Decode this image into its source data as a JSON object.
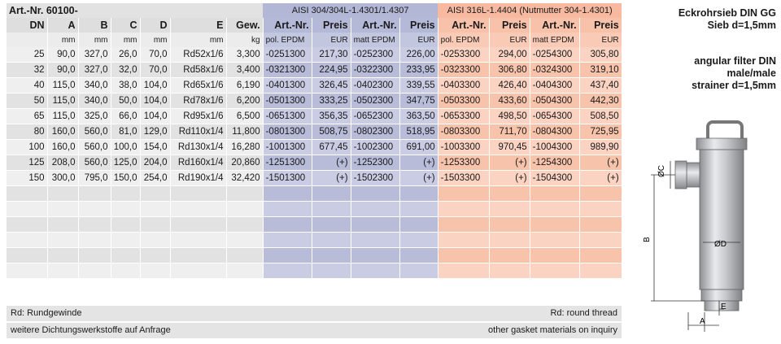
{
  "header": {
    "article_no": "Art.-Nr. 60100-",
    "group_a": "AISI 304/304L-1.4301/1.4307",
    "group_b": "AISI 316L-1.4404 (Nutmutter 304-1.4301)"
  },
  "columns": [
    "DN",
    "A",
    "B",
    "C",
    "D",
    "E",
    "Gew.",
    "Art.-Nr.",
    "Preis",
    "Art.-Nr.",
    "Preis",
    "Art.-Nr.",
    "Preis",
    "Art.-Nr.",
    "Preis"
  ],
  "units": [
    "",
    "mm",
    "mm",
    "mm",
    "mm",
    "mm",
    "kg",
    "pol. EPDM",
    "EUR",
    "matt EPDM",
    "EUR",
    "pol. EPDM",
    "EUR",
    "matt EPDM",
    "EUR"
  ],
  "rows": [
    [
      "25",
      "90,0",
      "327,0",
      "26,0",
      "70,0",
      "Rd52x1/6",
      "3,300",
      "-0251300",
      "217,30",
      "-0252300",
      "226,00",
      "-0253300",
      "294,00",
      "-0254300",
      "305,80"
    ],
    [
      "32",
      "90,0",
      "327,0",
      "32,0",
      "70,0",
      "Rd58x1/6",
      "3,400",
      "-0321300",
      "224,95",
      "-0322300",
      "233,95",
      "-0323300",
      "306,80",
      "-0324300",
      "319,10"
    ],
    [
      "40",
      "115,0",
      "340,0",
      "38,0",
      "104,0",
      "Rd65x1/6",
      "6,190",
      "-0401300",
      "326,45",
      "-0402300",
      "339,55",
      "-0403300",
      "426,40",
      "-0404300",
      "437,40"
    ],
    [
      "50",
      "115,0",
      "340,0",
      "50,0",
      "104,0",
      "Rd78x1/6",
      "6,200",
      "-0501300",
      "333,25",
      "-0502300",
      "347,75",
      "-0503300",
      "433,60",
      "-0504300",
      "442,30"
    ],
    [
      "65",
      "115,0",
      "325,0",
      "66,0",
      "104,0",
      "Rd95x1/6",
      "6,500",
      "-0651300",
      "356,35",
      "-0652300",
      "363,50",
      "-0653300",
      "498,50",
      "-0654300",
      "508,50"
    ],
    [
      "80",
      "160,0",
      "560,0",
      "81,0",
      "129,0",
      "Rd110x1/4",
      "11,800",
      "-0801300",
      "508,75",
      "-0802300",
      "518,95",
      "-0803300",
      "711,70",
      "-0804300",
      "725,95"
    ],
    [
      "100",
      "160,0",
      "560,0",
      "100,0",
      "154,0",
      "Rd130x1/4",
      "16,280",
      "-1001300",
      "677,45",
      "-1002300",
      "691,00",
      "-1003300",
      "970,45",
      "-1004300",
      "989,90"
    ],
    [
      "125",
      "208,0",
      "560,0",
      "125,0",
      "204,0",
      "Rd160x1/4",
      "20,860",
      "-1251300",
      "(+)",
      "-1252300",
      "(+)",
      "-1253300",
      "(+)",
      "-1254300",
      "(+)"
    ],
    [
      "150",
      "300,0",
      "795,0",
      "150,0",
      "254,0",
      "Rd190x1/4",
      "32,420",
      "-1501300",
      "(+)",
      "-1502300",
      "(+)",
      "-1503300",
      "(+)",
      "-1504300",
      "(+)"
    ]
  ],
  "footer": {
    "left1": "Rd: Rundgewinde",
    "right1": "Rd: round thread",
    "left2": "weitere Dichtungswerkstoffe auf Anfrage",
    "right2": "other gasket materials on inquiry"
  },
  "side": {
    "de_title": "Eckrohrsieb DIN GG",
    "de_sub": "Sieb d=1,5mm",
    "en_1": "angular filter DIN",
    "en_2": "male/male",
    "en_3": "strainer d=1,5mm"
  },
  "drawing": {
    "label_c": "ØC",
    "label_d": "ØD",
    "label_b": "B",
    "label_a": "A",
    "label_e": "E"
  }
}
